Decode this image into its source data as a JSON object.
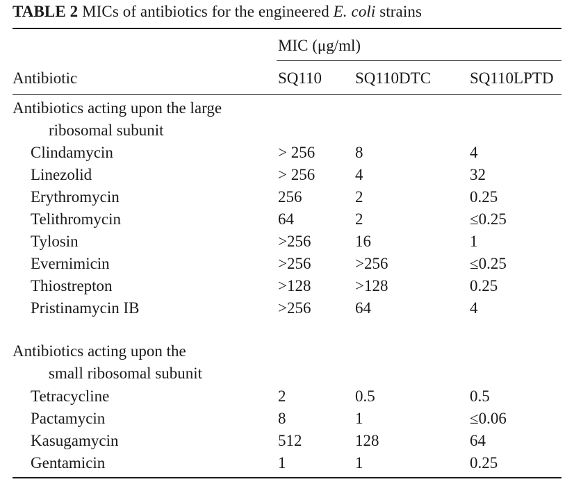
{
  "title": {
    "label": "TABLE 2",
    "text_before_italic": " MICs of antibiotics for the engineered ",
    "italic": "E. coli",
    "text_after_italic": " strains"
  },
  "header": {
    "unit": "MIC (μg/ml)",
    "antibiotic": "Antibiotic",
    "strains": [
      "SQ110",
      "SQ110DTC",
      "SQ110LPTD"
    ]
  },
  "groups": [
    {
      "heading_line1": "Antibiotics acting upon the large",
      "heading_line2": "ribosomal subunit",
      "rows": [
        {
          "name": "Clindamycin",
          "sq110": "> 256",
          "dtc": "8",
          "lptd": "4"
        },
        {
          "name": "Linezolid",
          "sq110": "> 256",
          "dtc": "4",
          "lptd": "32"
        },
        {
          "name": "Erythromycin",
          "sq110": "256",
          "dtc": "2",
          "lptd": "0.25"
        },
        {
          "name": "Telithromycin",
          "sq110": "64",
          "dtc": "2",
          "lptd": "≤0.25"
        },
        {
          "name": "Tylosin",
          "sq110": ">256",
          "dtc": "16",
          "lptd": "1"
        },
        {
          "name": "Evernimicin",
          "sq110": ">256",
          "dtc": ">256",
          "lptd": "≤0.25"
        },
        {
          "name": "Thiostrepton",
          "sq110": ">128",
          "dtc": ">128",
          "lptd": "0.25"
        },
        {
          "name": "Pristinamycin IB",
          "sq110": ">256",
          "dtc": "64",
          "lptd": "4"
        }
      ]
    },
    {
      "heading_line1": "Antibiotics acting upon the",
      "heading_line2": "small ribosomal subunit",
      "rows": [
        {
          "name": "Tetracycline",
          "sq110": "2",
          "dtc": "0.5",
          "lptd": "0.5"
        },
        {
          "name": "Pactamycin",
          "sq110": "8",
          "dtc": "1",
          "lptd": "≤0.06"
        },
        {
          "name": "Kasugamycin",
          "sq110": "512",
          "dtc": "128",
          "lptd": "64"
        },
        {
          "name": "Gentamicin",
          "sq110": "1",
          "dtc": "1",
          "lptd": "0.25"
        }
      ]
    }
  ]
}
